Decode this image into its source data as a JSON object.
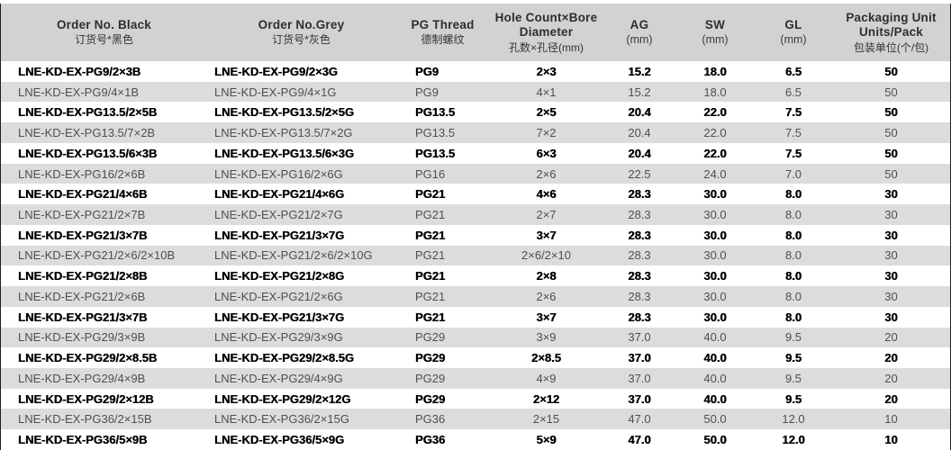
{
  "colors": {
    "header_bg": "#d2d2d2",
    "stripe_bg": "#dcdcdc",
    "row_bg": "#ffffff",
    "text_regular": "#4f4f4f",
    "text_bold": "#000000",
    "frame_line": "#1f1f1f"
  },
  "header": {
    "columns": [
      {
        "id": "order-black",
        "lines": [
          "Order No. Black",
          "订货号*黑色"
        ]
      },
      {
        "id": "order-grey",
        "lines": [
          "Order No.Grey",
          "订货号*灰色"
        ]
      },
      {
        "id": "pg-thread",
        "lines": [
          "PG Thread",
          "德制螺纹"
        ]
      },
      {
        "id": "hole-count",
        "lines": [
          "Hole Count×Bore",
          "Diameter",
          "孔数×孔径(mm)"
        ]
      },
      {
        "id": "ag",
        "lines": [
          "AG",
          "(mm)"
        ]
      },
      {
        "id": "sw",
        "lines": [
          "SW",
          "(mm)"
        ]
      },
      {
        "id": "gl",
        "lines": [
          "GL",
          "(mm)"
        ]
      },
      {
        "id": "packaging",
        "lines": [
          "Packaging Unit",
          "Units/Pack",
          "包装单位(个/包)"
        ]
      }
    ]
  },
  "rows": [
    {
      "order_black": "LNE-KD-EX-PG9/2×3B",
      "order_grey": "LNE-KD-EX-PG9/2×3G",
      "pg_thread": "PG9",
      "holes": "2×3",
      "ag": "15.2",
      "sw": "18.0",
      "gl": "6.5",
      "pack": "50",
      "bold": true
    },
    {
      "order_black": "LNE-KD-EX-PG9/4×1B",
      "order_grey": "LNE-KD-EX-PG9/4×1G",
      "pg_thread": "PG9",
      "holes": "4×1",
      "ag": "15.2",
      "sw": "18.0",
      "gl": "6.5",
      "pack": "50",
      "bold": false
    },
    {
      "order_black": "LNE-KD-EX-PG13.5/2×5B",
      "order_grey": "LNE-KD-EX-PG13.5/2×5G",
      "pg_thread": "PG13.5",
      "holes": "2×5",
      "ag": "20.4",
      "sw": "22.0",
      "gl": "7.5",
      "pack": "50",
      "bold": true
    },
    {
      "order_black": "LNE-KD-EX-PG13.5/7×2B",
      "order_grey": "LNE-KD-EX-PG13.5/7×2G",
      "pg_thread": "PG13.5",
      "holes": "7×2",
      "ag": "20.4",
      "sw": "22.0",
      "gl": "7.5",
      "pack": "50",
      "bold": false
    },
    {
      "order_black": "LNE-KD-EX-PG13.5/6×3B",
      "order_grey": "LNE-KD-EX-PG13.5/6×3G",
      "pg_thread": "PG13.5",
      "holes": "6×3",
      "ag": "20.4",
      "sw": "22.0",
      "gl": "7.5",
      "pack": "50",
      "bold": true
    },
    {
      "order_black": "LNE-KD-EX-PG16/2×6B",
      "order_grey": "LNE-KD-EX-PG16/2×6G",
      "pg_thread": "PG16",
      "holes": "2×6",
      "ag": "22.5",
      "sw": "24.0",
      "gl": "7.0",
      "pack": "50",
      "bold": false
    },
    {
      "order_black": "LNE-KD-EX-PG21/4×6B",
      "order_grey": "LNE-KD-EX-PG21/4×6G",
      "pg_thread": "PG21",
      "holes": "4×6",
      "ag": "28.3",
      "sw": "30.0",
      "gl": "8.0",
      "pack": "30",
      "bold": true
    },
    {
      "order_black": "LNE-KD-EX-PG21/2×7B",
      "order_grey": "LNE-KD-EX-PG21/2×7G",
      "pg_thread": "PG21",
      "holes": "2×7",
      "ag": "28.3",
      "sw": "30.0",
      "gl": "8.0",
      "pack": "30",
      "bold": false
    },
    {
      "order_black": "LNE-KD-EX-PG21/3×7B",
      "order_grey": "LNE-KD-EX-PG21/3×7G",
      "pg_thread": "PG21",
      "holes": "3×7",
      "ag": "28.3",
      "sw": "30.0",
      "gl": "8.0",
      "pack": "30",
      "bold": true
    },
    {
      "order_black": "LNE-KD-EX-PG21/2×6/2×10B",
      "order_grey": "LNE-KD-EX-PG21/2×6/2×10G",
      "pg_thread": "PG21",
      "holes": "2×6/2×10",
      "ag": "28.3",
      "sw": "30.0",
      "gl": "8.0",
      "pack": "30",
      "bold": false
    },
    {
      "order_black": "LNE-KD-EX-PG21/2×8B",
      "order_grey": "LNE-KD-EX-PG21/2×8G",
      "pg_thread": "PG21",
      "holes": "2×8",
      "ag": "28.3",
      "sw": "30.0",
      "gl": "8.0",
      "pack": "30",
      "bold": true
    },
    {
      "order_black": "LNE-KD-EX-PG21/2×6B",
      "order_grey": "LNE-KD-EX-PG21/2×6G",
      "pg_thread": "PG21",
      "holes": "2×6",
      "ag": "28.3",
      "sw": "30.0",
      "gl": "8.0",
      "pack": "30",
      "bold": false
    },
    {
      "order_black": "LNE-KD-EX-PG21/3×7B",
      "order_grey": "LNE-KD-EX-PG21/3×7G",
      "pg_thread": "PG21",
      "holes": "3×7",
      "ag": "28.3",
      "sw": "30.0",
      "gl": "8.0",
      "pack": "30",
      "bold": true
    },
    {
      "order_black": "LNE-KD-EX-PG29/3×9B",
      "order_grey": "LNE-KD-EX-PG29/3×9G",
      "pg_thread": "PG29",
      "holes": "3×9",
      "ag": "37.0",
      "sw": "40.0",
      "gl": "9.5",
      "pack": "20",
      "bold": false
    },
    {
      "order_black": "LNE-KD-EX-PG29/2×8.5B",
      "order_grey": "LNE-KD-EX-PG29/2×8.5G",
      "pg_thread": "PG29",
      "holes": "2×8.5",
      "ag": "37.0",
      "sw": "40.0",
      "gl": "9.5",
      "pack": "20",
      "bold": true
    },
    {
      "order_black": "LNE-KD-EX-PG29/4×9B",
      "order_grey": "LNE-KD-EX-PG29/4×9G",
      "pg_thread": "PG29",
      "holes": "4×9",
      "ag": "37.0",
      "sw": "40.0",
      "gl": "9.5",
      "pack": "20",
      "bold": false
    },
    {
      "order_black": "LNE-KD-EX-PG29/2×12B",
      "order_grey": "LNE-KD-EX-PG29/2×12G",
      "pg_thread": "PG29",
      "holes": "2×12",
      "ag": "37.0",
      "sw": "40.0",
      "gl": "9.5",
      "pack": "20",
      "bold": true
    },
    {
      "order_black": "LNE-KD-EX-PG36/2×15B",
      "order_grey": "LNE-KD-EX-PG36/2×15G",
      "pg_thread": "PG36",
      "holes": "2×15",
      "ag": "47.0",
      "sw": "50.0",
      "gl": "12.0",
      "pack": "10",
      "bold": false
    },
    {
      "order_black": "LNE-KD-EX-PG36/5×9B",
      "order_grey": "LNE-KD-EX-PG36/5×9G",
      "pg_thread": "PG36",
      "holes": "5×9",
      "ag": "47.0",
      "sw": "50.0",
      "gl": "12.0",
      "pack": "10",
      "bold": true
    }
  ]
}
